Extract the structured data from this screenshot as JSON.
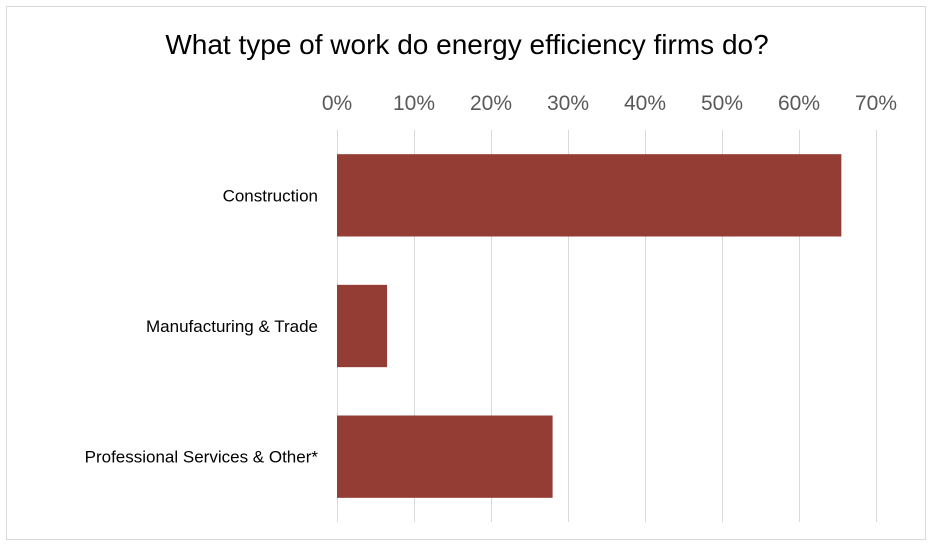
{
  "chart_data": {
    "type": "bar",
    "orientation": "horizontal",
    "title": "What type of work do energy efficiency firms do?",
    "categories": [
      "Construction",
      "Manufacturing & Trade",
      "Professional Services & Other*"
    ],
    "values": [
      0.655,
      0.065,
      0.28
    ],
    "xlim": [
      0,
      0.7
    ],
    "x_ticks": [
      0,
      0.1,
      0.2,
      0.3,
      0.4,
      0.5,
      0.6,
      0.7
    ],
    "x_tick_labels": [
      "0%",
      "10%",
      "20%",
      "30%",
      "40%",
      "50%",
      "60%",
      "70%"
    ],
    "x_axis_position": "top",
    "grid": true,
    "legend": "none",
    "bar_color": "#943d34",
    "grid_color": "#d9d9d9",
    "tick_label_color": "#595959"
  }
}
